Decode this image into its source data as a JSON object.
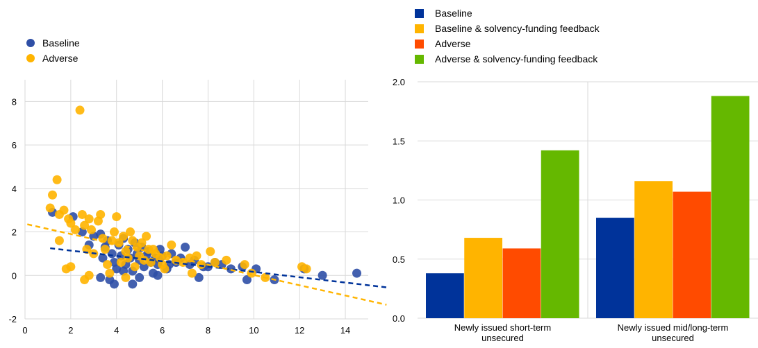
{
  "chart_data": [
    {
      "type": "scatter",
      "title": "",
      "xlabel": "",
      "ylabel": "",
      "xlim": [
        0,
        15
      ],
      "ylim": [
        -2,
        9
      ],
      "xticks": [
        0,
        2,
        4,
        6,
        8,
        10,
        12,
        14
      ],
      "yticks": [
        -2,
        0,
        2,
        4,
        6,
        8
      ],
      "grid": true,
      "legend_position": "top-left",
      "series": [
        {
          "name": "Baseline",
          "color": "#2f4fa6",
          "points": [
            [
              1.2,
              2.9
            ],
            [
              2.1,
              2.7
            ],
            [
              2.5,
              2.0
            ],
            [
              2.8,
              1.4
            ],
            [
              3.0,
              1.8
            ],
            [
              3.3,
              1.9
            ],
            [
              3.5,
              1.3
            ],
            [
              3.4,
              0.8
            ],
            [
              3.6,
              1.6
            ],
            [
              3.8,
              1.0
            ],
            [
              3.9,
              0.6
            ],
            [
              4.0,
              0.3
            ],
            [
              4.1,
              1.4
            ],
            [
              4.2,
              0.9
            ],
            [
              4.3,
              1.7
            ],
            [
              4.4,
              0.5
            ],
            [
              4.5,
              1.2
            ],
            [
              4.6,
              0.8
            ],
            [
              4.7,
              0.2
            ],
            [
              4.8,
              1.5
            ],
            [
              4.9,
              1.0
            ],
            [
              5.0,
              0.7
            ],
            [
              5.1,
              1.3
            ],
            [
              5.2,
              0.4
            ],
            [
              5.3,
              0.9
            ],
            [
              5.4,
              1.1
            ],
            [
              5.5,
              0.6
            ],
            [
              5.6,
              0.1
            ],
            [
              5.7,
              0.8
            ],
            [
              5.8,
              0.5
            ],
            [
              5.9,
              1.2
            ],
            [
              6.0,
              0.9
            ],
            [
              6.2,
              0.3
            ],
            [
              6.4,
              1.0
            ],
            [
              6.6,
              0.6
            ],
            [
              6.8,
              0.8
            ],
            [
              7.0,
              1.3
            ],
            [
              7.2,
              0.5
            ],
            [
              7.4,
              0.7
            ],
            [
              7.6,
              -0.1
            ],
            [
              7.8,
              0.4
            ],
            [
              8.0,
              0.4
            ],
            [
              8.3,
              0.6
            ],
            [
              8.6,
              0.5
            ],
            [
              9.0,
              0.3
            ],
            [
              9.5,
              0.4
            ],
            [
              9.7,
              -0.2
            ],
            [
              10.1,
              0.3
            ],
            [
              10.9,
              -0.2
            ],
            [
              12.2,
              0.3
            ],
            [
              13.0,
              0.0
            ],
            [
              14.5,
              0.1
            ],
            [
              3.7,
              -0.2
            ],
            [
              3.9,
              -0.4
            ],
            [
              4.7,
              -0.4
            ],
            [
              5.0,
              -0.1
            ],
            [
              5.8,
              0.0
            ],
            [
              4.3,
              0.2
            ],
            [
              3.3,
              -0.1
            ],
            [
              6.3,
              0.5
            ]
          ]
        },
        {
          "name": "Adverse",
          "color": "#ffb400",
          "points": [
            [
              1.1,
              3.1
            ],
            [
              1.2,
              3.7
            ],
            [
              1.4,
              4.4
            ],
            [
              1.5,
              2.8
            ],
            [
              1.7,
              3.0
            ],
            [
              1.9,
              2.6
            ],
            [
              2.0,
              2.4
            ],
            [
              2.2,
              2.1
            ],
            [
              1.5,
              1.6
            ],
            [
              1.8,
              0.3
            ],
            [
              2.0,
              0.4
            ],
            [
              2.4,
              7.6
            ],
            [
              2.5,
              2.8
            ],
            [
              2.6,
              2.3
            ],
            [
              2.8,
              2.6
            ],
            [
              2.9,
              2.1
            ],
            [
              3.0,
              1.0
            ],
            [
              2.7,
              1.2
            ],
            [
              2.6,
              -0.2
            ],
            [
              2.8,
              0.0
            ],
            [
              3.2,
              2.5
            ],
            [
              3.3,
              2.8
            ],
            [
              3.4,
              1.7
            ],
            [
              3.5,
              1.2
            ],
            [
              3.6,
              0.5
            ],
            [
              3.8,
              1.6
            ],
            [
              3.9,
              2.0
            ],
            [
              4.0,
              2.7
            ],
            [
              4.1,
              1.5
            ],
            [
              4.2,
              0.6
            ],
            [
              4.3,
              1.8
            ],
            [
              4.4,
              1.1
            ],
            [
              4.5,
              0.8
            ],
            [
              4.6,
              2.0
            ],
            [
              4.7,
              1.6
            ],
            [
              4.8,
              0.4
            ],
            [
              4.9,
              1.3
            ],
            [
              5.0,
              0.9
            ],
            [
              5.1,
              1.5
            ],
            [
              5.2,
              0.7
            ],
            [
              5.3,
              1.8
            ],
            [
              5.4,
              1.2
            ],
            [
              5.5,
              0.6
            ],
            [
              5.7,
              1.0
            ],
            [
              5.9,
              0.8
            ],
            [
              6.0,
              0.5
            ],
            [
              6.2,
              0.9
            ],
            [
              6.4,
              1.4
            ],
            [
              6.6,
              0.7
            ],
            [
              6.9,
              0.6
            ],
            [
              7.2,
              0.8
            ],
            [
              7.5,
              0.9
            ],
            [
              7.7,
              0.5
            ],
            [
              8.1,
              1.1
            ],
            [
              8.3,
              0.6
            ],
            [
              8.8,
              0.7
            ],
            [
              9.6,
              0.5
            ],
            [
              9.9,
              0.1
            ],
            [
              10.5,
              -0.1
            ],
            [
              12.1,
              0.4
            ],
            [
              12.3,
              0.3
            ],
            [
              3.7,
              0.1
            ],
            [
              4.4,
              -0.1
            ],
            [
              6.1,
              0.3
            ],
            [
              7.3,
              0.1
            ],
            [
              5.6,
              1.2
            ]
          ]
        }
      ],
      "trendlines": [
        {
          "series": "Baseline",
          "color": "#00339a",
          "x": [
            1.1,
            15.8
          ],
          "y": [
            1.25,
            -0.55
          ]
        },
        {
          "series": "Adverse",
          "color": "#ffb400",
          "x": [
            0.1,
            15.8
          ],
          "y": [
            2.35,
            -1.35
          ]
        }
      ]
    },
    {
      "type": "bar",
      "title": "",
      "xlabel": "",
      "ylabel": "",
      "ylim": [
        0.0,
        2.0
      ],
      "yticks": [
        "0.0",
        "0.5",
        "1.0",
        "1.5",
        "2.0"
      ],
      "grid": true,
      "legend_position": "top",
      "categories": [
        [
          "Newly issued short-term",
          "unsecured"
        ],
        [
          "Newly issued mid/long-term",
          "unsecured"
        ]
      ],
      "series": [
        {
          "name": "Baseline",
          "color": "#00339a",
          "values": [
            0.38,
            0.85
          ]
        },
        {
          "name": "Baseline & solvency-funding feedback",
          "color": "#ffb400",
          "values": [
            0.68,
            1.16
          ]
        },
        {
          "name": "Adverse",
          "color": "#ff4b00",
          "values": [
            0.59,
            1.07
          ]
        },
        {
          "name": "Adverse & solvency-funding feedback",
          "color": "#65b800",
          "values": [
            1.42,
            1.88
          ]
        }
      ]
    }
  ]
}
